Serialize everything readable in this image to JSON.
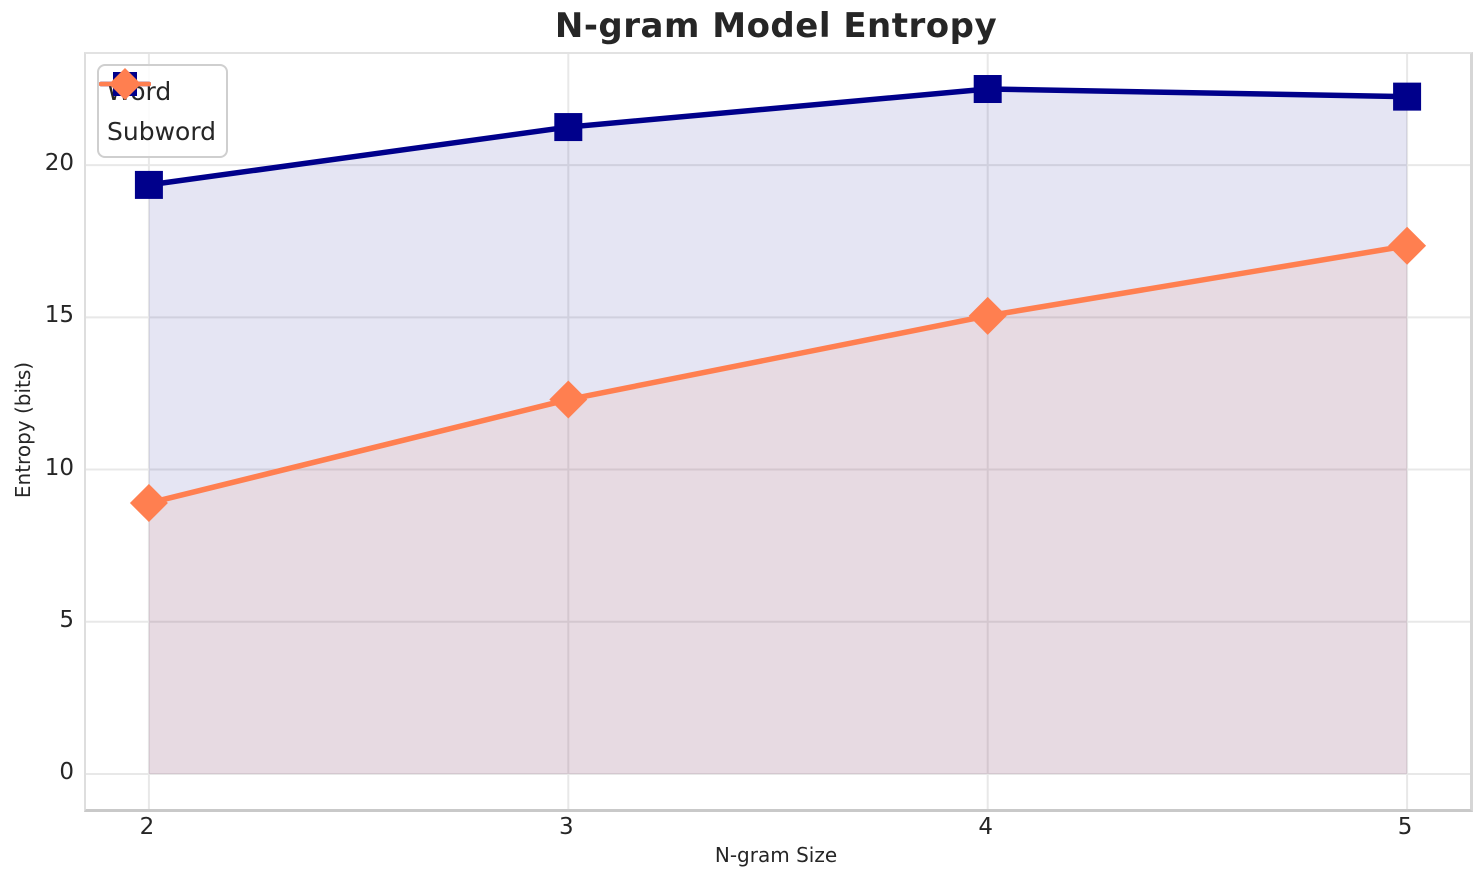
{
  "chart_data": {
    "type": "line",
    "title": "N-gram Model Entropy",
    "xlabel": "N-gram Size",
    "ylabel": "Entropy (bits)",
    "x": [
      2,
      3,
      4,
      5
    ],
    "series": [
      {
        "name": "Word",
        "values": [
          19.35,
          21.25,
          22.5,
          22.25
        ],
        "color": "#00008B",
        "marker": "square",
        "fill_to_zero": true
      },
      {
        "name": "Subword",
        "values": [
          8.9,
          12.3,
          15.05,
          17.35
        ],
        "color": "#FF7F50",
        "marker": "diamond",
        "fill_to_zero": true
      }
    ],
    "x_ticks": [
      "2",
      "3",
      "4",
      "5"
    ],
    "y_ticks": [
      "0",
      "5",
      "10",
      "15",
      "20"
    ],
    "xlim": [
      1.85,
      5.15
    ],
    "ylim": [
      -1.15,
      23.65
    ],
    "grid": true,
    "grid_color": "#E8E8E8",
    "fill_alpha": 0.1,
    "line_width": 5.5,
    "legend_position": "upper-left",
    "text_color": "#262626",
    "background_color": "#FFFFFF"
  }
}
